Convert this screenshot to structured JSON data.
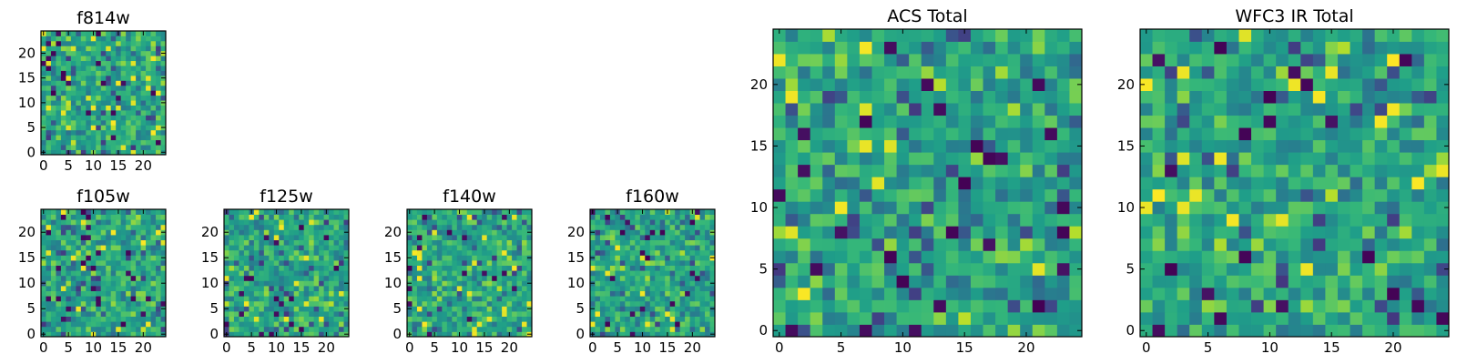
{
  "chart_data": [
    {
      "type": "heatmap",
      "title": "f814w",
      "grid_size": 25,
      "xlim": [
        0,
        24
      ],
      "ylim": [
        0,
        24
      ],
      "x_ticks": [
        0,
        5,
        10,
        15,
        20
      ],
      "y_ticks": [
        0,
        5,
        10,
        15,
        20
      ],
      "colormap": "viridis",
      "seed": 11,
      "values": "25x25 pixel cutout (values not labelled)"
    },
    {
      "type": "heatmap",
      "title": "f105w",
      "grid_size": 25,
      "xlim": [
        0,
        24
      ],
      "ylim": [
        0,
        24
      ],
      "x_ticks": [
        0,
        5,
        10,
        15,
        20
      ],
      "y_ticks": [
        0,
        5,
        10,
        15,
        20
      ],
      "colormap": "viridis",
      "seed": 23,
      "values": "25x25 pixel cutout (values not labelled)"
    },
    {
      "type": "heatmap",
      "title": "f125w",
      "grid_size": 25,
      "xlim": [
        0,
        24
      ],
      "ylim": [
        0,
        24
      ],
      "x_ticks": [
        0,
        5,
        10,
        15,
        20
      ],
      "y_ticks": [
        0,
        5,
        10,
        15,
        20
      ],
      "colormap": "viridis",
      "seed": 37,
      "values": "25x25 pixel cutout (values not labelled)"
    },
    {
      "type": "heatmap",
      "title": "f140w",
      "grid_size": 25,
      "xlim": [
        0,
        24
      ],
      "ylim": [
        0,
        24
      ],
      "x_ticks": [
        0,
        5,
        10,
        15,
        20
      ],
      "y_ticks": [
        0,
        5,
        10,
        15,
        20
      ],
      "colormap": "viridis",
      "seed": 41,
      "values": "25x25 pixel cutout (values not labelled)"
    },
    {
      "type": "heatmap",
      "title": "f160w",
      "grid_size": 25,
      "xlim": [
        0,
        24
      ],
      "ylim": [
        0,
        24
      ],
      "x_ticks": [
        0,
        5,
        10,
        15,
        20
      ],
      "y_ticks": [
        0,
        5,
        10,
        15,
        20
      ],
      "colormap": "viridis",
      "seed": 53,
      "values": "25x25 pixel cutout (values not labelled)"
    },
    {
      "type": "heatmap",
      "title": "ACS Total",
      "grid_size": 25,
      "xlim": [
        0,
        24
      ],
      "ylim": [
        0,
        24
      ],
      "x_ticks": [
        0,
        5,
        10,
        15,
        20
      ],
      "y_ticks": [
        0,
        5,
        10,
        15,
        20
      ],
      "colormap": "viridis",
      "seed": 67,
      "values": "25x25 pixel cutout (values not labelled)"
    },
    {
      "type": "heatmap",
      "title": "WFC3 IR Total",
      "grid_size": 25,
      "xlim": [
        0,
        24
      ],
      "ylim": [
        0,
        24
      ],
      "x_ticks": [
        0,
        5,
        10,
        15,
        20
      ],
      "y_ticks": [
        0,
        5,
        10,
        15,
        20
      ],
      "colormap": "viridis",
      "seed": 79,
      "values": "25x25 pixel cutout (values not labelled)"
    }
  ]
}
